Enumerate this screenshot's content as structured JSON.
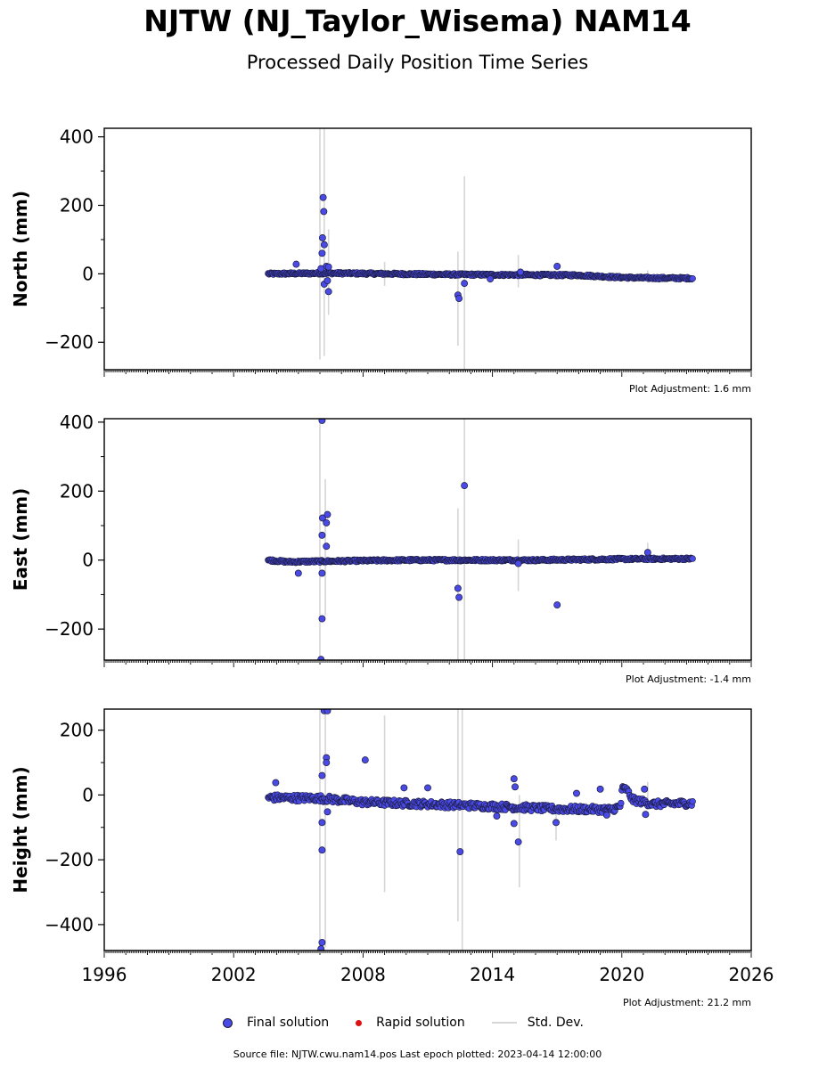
{
  "title": "NJTW (NJ_Taylor_Wisema) NAM14",
  "subtitle": "Processed Daily Position Time Series",
  "legend": {
    "final": "Final solution",
    "rapid": "Rapid solution",
    "std": "Std. Dev."
  },
  "footer": "Source file: NJTW.cwu.nam14.pos  Last epoch plotted: 2023-04-14 12:00:00",
  "colors": {
    "final": "#4a4ae6",
    "final_edge": "#1a1a3a",
    "rapid": "#dd1111",
    "std": "#d6d6d6"
  },
  "chart_data": [
    {
      "type": "scatter",
      "ylabel": "North (mm)",
      "xlim": [
        1996,
        2026
      ],
      "ylim": [
        -280,
        425
      ],
      "yticks": [
        -200,
        0,
        200,
        400
      ],
      "adjustment": "Plot Adjustment: 1.6 mm",
      "trend": [
        [
          2003.6,
          0
        ],
        [
          2006.5,
          2
        ],
        [
          2012.0,
          -2
        ],
        [
          2018.0,
          -4
        ],
        [
          2019.8,
          -10
        ],
        [
          2021.0,
          -12
        ],
        [
          2023.3,
          -13
        ]
      ],
      "scatter": 3,
      "band_step": 0.04,
      "outliers": [
        [
          2004.9,
          28
        ],
        [
          2006.15,
          223
        ],
        [
          2006.18,
          182
        ],
        [
          2006.12,
          105
        ],
        [
          2006.2,
          85
        ],
        [
          2006.1,
          60
        ],
        [
          2006.3,
          22
        ],
        [
          2006.05,
          15
        ],
        [
          2006.4,
          20
        ],
        [
          2006.2,
          -30
        ],
        [
          2006.4,
          -52
        ],
        [
          2006.35,
          -20
        ],
        [
          2012.4,
          -62
        ],
        [
          2012.45,
          -72
        ],
        [
          2012.7,
          -28
        ],
        [
          2013.9,
          -15
        ],
        [
          2015.3,
          5
        ],
        [
          2017.0,
          22
        ]
      ],
      "stddev": [
        [
          2006.0,
          -250,
          425
        ],
        [
          2006.2,
          -240,
          425
        ],
        [
          2006.4,
          -120,
          130
        ],
        [
          2009.0,
          -35,
          35
        ],
        [
          2012.4,
          -210,
          65
        ],
        [
          2012.7,
          -280,
          285
        ],
        [
          2015.2,
          -40,
          55
        ],
        [
          2021.2,
          -20,
          10
        ]
      ]
    },
    {
      "type": "scatter",
      "ylabel": "East (mm)",
      "xlim": [
        1996,
        2026
      ],
      "ylim": [
        -290,
        410
      ],
      "yticks": [
        -200,
        0,
        200,
        400
      ],
      "adjustment": "Plot Adjustment: -1.4 mm",
      "trend": [
        [
          2003.6,
          0
        ],
        [
          2004.5,
          -5
        ],
        [
          2010.0,
          0
        ],
        [
          2016.0,
          0
        ],
        [
          2020.0,
          3
        ],
        [
          2023.3,
          4
        ]
      ],
      "scatter": 3,
      "band_step": 0.04,
      "outliers": [
        [
          2006.1,
          405
        ],
        [
          2006.12,
          122
        ],
        [
          2006.35,
          132
        ],
        [
          2006.3,
          108
        ],
        [
          2006.1,
          72
        ],
        [
          2006.3,
          40
        ],
        [
          2006.1,
          -38
        ],
        [
          2006.1,
          -170
        ],
        [
          2006.05,
          -288
        ],
        [
          2005.0,
          -38
        ],
        [
          2012.4,
          -82
        ],
        [
          2012.45,
          -108
        ],
        [
          2012.7,
          216
        ],
        [
          2015.2,
          -10
        ],
        [
          2017.0,
          -130
        ],
        [
          2021.2,
          22
        ]
      ],
      "stddev": [
        [
          2006.0,
          -290,
          410
        ],
        [
          2006.25,
          -160,
          235
        ],
        [
          2012.4,
          -290,
          150
        ],
        [
          2012.7,
          -290,
          410
        ],
        [
          2015.2,
          -90,
          60
        ],
        [
          2021.2,
          0,
          50
        ]
      ]
    },
    {
      "type": "scatter",
      "ylabel": "Height (mm)",
      "xlim": [
        1996,
        2026
      ],
      "ylim": [
        -480,
        265
      ],
      "yticks": [
        -400,
        -200,
        0,
        200
      ],
      "adjustment": "Plot Adjustment: 21.2 mm",
      "trend": [
        [
          2003.6,
          -8
        ],
        [
          2006.0,
          -10
        ],
        [
          2008.0,
          -22
        ],
        [
          2011.0,
          -28
        ],
        [
          2014.0,
          -35
        ],
        [
          2017.0,
          -43
        ],
        [
          2019.5,
          -45
        ],
        [
          2019.95,
          -35
        ],
        [
          2020.0,
          18
        ],
        [
          2020.2,
          18
        ],
        [
          2020.5,
          -15
        ],
        [
          2021.5,
          -28
        ],
        [
          2023.3,
          -25
        ]
      ],
      "scatter": 10,
      "band_step": 0.04,
      "outliers": [
        [
          2003.95,
          38
        ],
        [
          2006.2,
          260
        ],
        [
          2006.35,
          260
        ],
        [
          2006.3,
          115
        ],
        [
          2006.3,
          100
        ],
        [
          2006.1,
          60
        ],
        [
          2006.1,
          -85
        ],
        [
          2006.1,
          -170
        ],
        [
          2006.1,
          -455
        ],
        [
          2006.05,
          -475
        ],
        [
          2006.35,
          -52
        ],
        [
          2008.1,
          108
        ],
        [
          2009.9,
          22
        ],
        [
          2011.0,
          22
        ],
        [
          2012.5,
          -175
        ],
        [
          2014.2,
          -65
        ],
        [
          2015.0,
          50
        ],
        [
          2015.05,
          25
        ],
        [
          2015.0,
          -88
        ],
        [
          2015.2,
          -145
        ],
        [
          2016.95,
          -85
        ],
        [
          2017.9,
          5
        ],
        [
          2019.0,
          18
        ],
        [
          2019.3,
          -62
        ],
        [
          2021.05,
          18
        ],
        [
          2021.1,
          -60
        ]
      ],
      "stddev": [
        [
          2006.0,
          -480,
          265
        ],
        [
          2006.25,
          -470,
          265
        ],
        [
          2009.0,
          -300,
          245
        ],
        [
          2012.4,
          -390,
          265
        ],
        [
          2012.6,
          -480,
          265
        ],
        [
          2015.25,
          -285,
          0
        ],
        [
          2016.95,
          -140,
          -40
        ],
        [
          2021.2,
          -40,
          40
        ]
      ],
      "xticks": [
        1996,
        2002,
        2008,
        2014,
        2020,
        2026
      ],
      "xticklabels": [
        "1996",
        "2002",
        "2008",
        "2014",
        "2020",
        "2026"
      ]
    }
  ]
}
